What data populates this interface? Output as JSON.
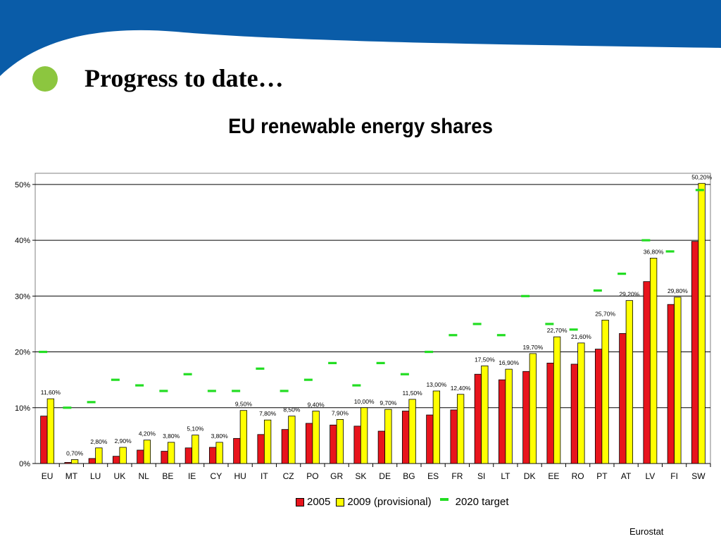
{
  "slide": {
    "title": "Progress to date…",
    "source": "Eurostat",
    "colors": {
      "banner": "#0a5ca8",
      "bullet": "#8cc63f"
    }
  },
  "chart_data": {
    "type": "bar",
    "title": "EU renewable energy shares",
    "categories": [
      "EU",
      "MT",
      "LU",
      "UK",
      "NL",
      "BE",
      "IE",
      "CY",
      "HU",
      "IT",
      "CZ",
      "PO",
      "GR",
      "SK",
      "DE",
      "BG",
      "ES",
      "FR",
      "SI",
      "LT",
      "DK",
      "EE",
      "RO",
      "PT",
      "AT",
      "LV",
      "FI",
      "SW"
    ],
    "series": [
      {
        "name": "2005",
        "color": "#e8141c",
        "values": [
          8.5,
          0.2,
          0.9,
          1.3,
          2.4,
          2.2,
          2.8,
          2.9,
          4.5,
          5.2,
          6.1,
          7.2,
          6.9,
          6.7,
          5.8,
          9.4,
          8.7,
          9.6,
          16.0,
          15.0,
          16.5,
          18.0,
          17.8,
          20.5,
          23.3,
          32.6,
          28.5,
          39.8
        ]
      },
      {
        "name": "2009 (provisional)",
        "color": "#ffff00",
        "values": [
          11.6,
          0.7,
          2.8,
          2.9,
          4.2,
          3.8,
          5.1,
          3.8,
          9.5,
          7.8,
          8.5,
          9.4,
          7.9,
          10.0,
          9.7,
          11.5,
          13.0,
          12.4,
          17.5,
          16.9,
          19.7,
          22.7,
          21.6,
          25.7,
          29.2,
          36.8,
          29.8,
          50.2
        ]
      },
      {
        "name": "2020 target",
        "color": "#22dd22",
        "style": "dash",
        "values": [
          20,
          10,
          11,
          15,
          14,
          13,
          16,
          13,
          13,
          17,
          13,
          15,
          18,
          14,
          18,
          16,
          20,
          23,
          25,
          23,
          30,
          25,
          24,
          31,
          34,
          40,
          38,
          49
        ]
      }
    ],
    "data_labels": [
      "11,60%",
      "0,70%",
      "2,80%",
      "2,90%",
      "4,20%",
      "3,80%",
      "5,10%",
      "3,80%",
      "9,50%",
      "7,80%",
      "8,50%",
      "9,40%",
      "7,90%",
      "10,00%",
      "9,70%",
      "11,50%",
      "13,00%",
      "12,40%",
      "17,50%",
      "16,90%",
      "19,70%",
      "22,70%",
      "21,60%",
      "25,70%",
      "29,20%",
      "36,80%",
      "29,80%",
      "50,20%"
    ],
    "y_ticks": [
      "0%",
      "10%",
      "20%",
      "30%",
      "40%",
      "50%"
    ],
    "ylim": [
      0,
      52
    ],
    "grid": true,
    "legend": "bottom"
  }
}
